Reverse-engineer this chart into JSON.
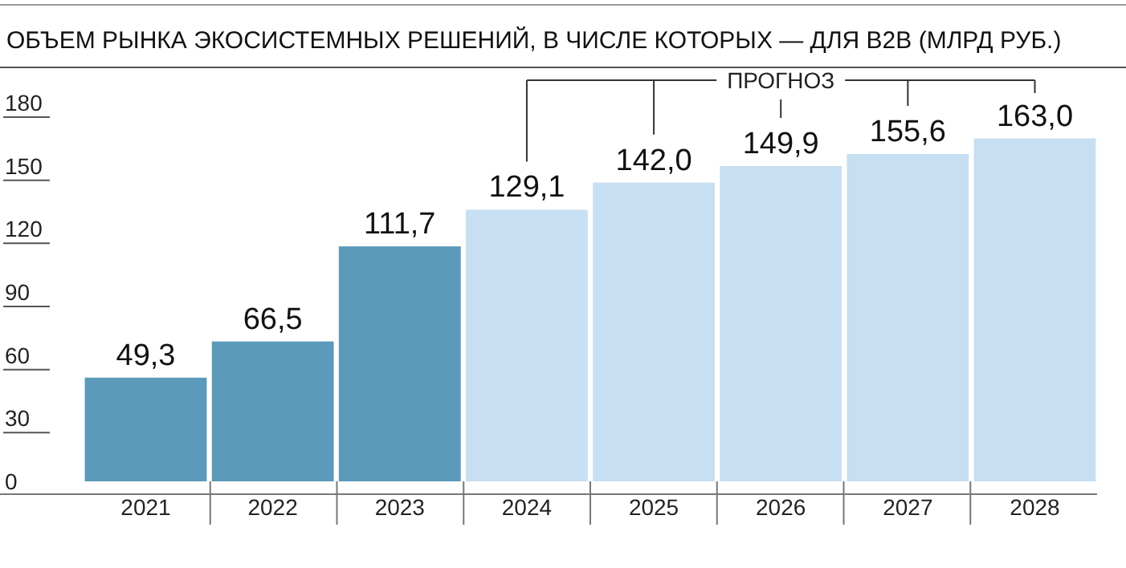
{
  "chart_data": {
    "type": "bar",
    "title": "ОБЪЕМ РЫНКА ЭКОСИСТЕМНЫХ РЕШЕНИЙ, В ЧИСЛЕ КОТОРЫХ — ДЛЯ B2B (МЛРД РУБ.)",
    "categories": [
      "2021",
      "2022",
      "2023",
      "2024",
      "2025",
      "2026",
      "2027",
      "2028"
    ],
    "values": [
      49.3,
      66.5,
      111.7,
      129.1,
      142.0,
      149.9,
      155.6,
      163.0
    ],
    "colors": [
      "#5b9aba",
      "#5b9aba",
      "#5b9aba",
      "#c7dff2",
      "#c7dff2",
      "#c7dff2",
      "#c7dff2",
      "#c7dff2"
    ],
    "value_labels": [
      "49,3",
      "66,5",
      "111,7",
      "129,1",
      "142,0",
      "149,9",
      "155,6",
      "163,0"
    ],
    "ylim": [
      0,
      180
    ],
    "yticks": [
      0,
      30,
      60,
      90,
      120,
      150,
      180
    ],
    "annotations": [
      "ПРОГНОЗ"
    ]
  }
}
